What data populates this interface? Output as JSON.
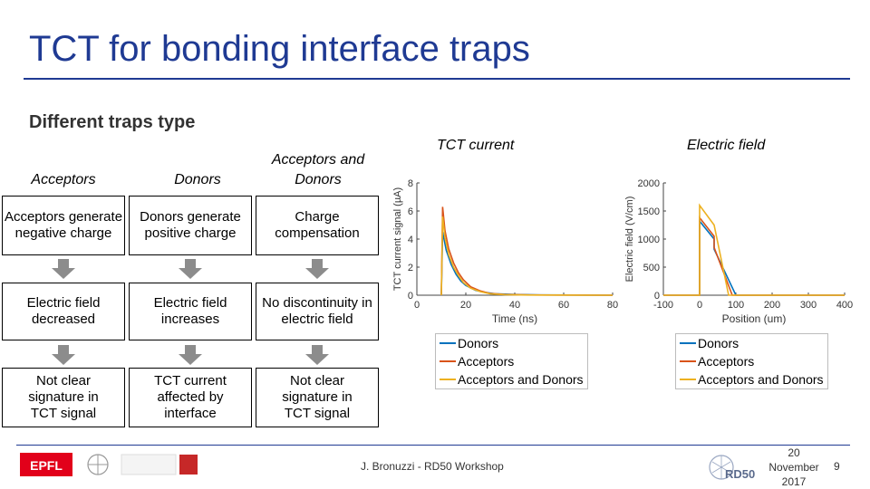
{
  "slide": {
    "title": "TCT for bonding interface traps",
    "subtitle": "Different traps type",
    "page_number": "9"
  },
  "columns": [
    {
      "header": "Acceptors",
      "effect": "Acceptors generate negative charge",
      "field": "Electric field decreased",
      "signal": "Not clear signature in TCT signal"
    },
    {
      "header": "Donors",
      "effect": "Donors generate positive charge",
      "field": "Electric field increases",
      "signal": "TCT current affected by interface"
    },
    {
      "header": "Acceptors and Donors",
      "effect": "Charge compensation",
      "field": "No discontinuity in electric field",
      "signal": "Not clear signature in TCT signal"
    }
  ],
  "footer": {
    "author": "J. Bronuzzi - RD50 Workshop",
    "date_line1": "20",
    "date_line2": "November",
    "date_line3": "2017",
    "logo_left_text": "EPFL",
    "logo_right_text": "RD50"
  },
  "colors": {
    "donors": "#0072bd",
    "acceptors": "#d95319",
    "both": "#edb120",
    "accent": "#1f3a93"
  },
  "chart_data": [
    {
      "type": "line",
      "title": "TCT current",
      "xlabel": "Time (ns)",
      "ylabel": "TCT current signal (µA)",
      "xlim": [
        0,
        80
      ],
      "ylim": [
        0,
        8
      ],
      "xticks": [
        "0",
        "20",
        "40",
        "60",
        "80"
      ],
      "yticks": [
        "0",
        "2",
        "4",
        "6",
        "8"
      ],
      "grid": false,
      "legend_position": "below",
      "series": [
        {
          "name": "Donors",
          "x": [
            10,
            10.5,
            12,
            14,
            16,
            18,
            20,
            24,
            28,
            32,
            40,
            50,
            80
          ],
          "y": [
            0,
            4.5,
            3.2,
            2.2,
            1.5,
            1.0,
            0.7,
            0.35,
            0.2,
            0.1,
            0.05,
            0.02,
            0
          ]
        },
        {
          "name": "Acceptors",
          "x": [
            10,
            10.5,
            11.5,
            13,
            15,
            17,
            19,
            22,
            26,
            30,
            36,
            46,
            80
          ],
          "y": [
            0,
            6.3,
            4.6,
            3.3,
            2.3,
            1.6,
            1.1,
            0.6,
            0.3,
            0.12,
            0.05,
            0.02,
            0
          ]
        },
        {
          "name": "Acceptors and Donors",
          "x": [
            10,
            10.5,
            11.5,
            13,
            15,
            17,
            19,
            22,
            26,
            30,
            36,
            46,
            80
          ],
          "y": [
            0,
            5.6,
            4.1,
            2.9,
            2.0,
            1.4,
            0.9,
            0.5,
            0.25,
            0.1,
            0.04,
            0.01,
            0
          ]
        }
      ]
    },
    {
      "type": "line",
      "title": "Electric field",
      "xlabel": "Position (um)",
      "ylabel": "Electric field (V/cm)",
      "xlim": [
        -100,
        400
      ],
      "ylim": [
        0,
        2000
      ],
      "xticks": [
        "-100",
        "0",
        "100",
        "200",
        "300",
        "400"
      ],
      "yticks": [
        "0",
        "500",
        "1000",
        "1500",
        "2000"
      ],
      "grid": false,
      "legend_position": "below",
      "series": [
        {
          "name": "Donors",
          "x": [
            -100,
            0,
            0,
            40,
            40,
            100,
            400
          ],
          "y": [
            0,
            0,
            1320,
            1000,
            820,
            0,
            0
          ]
        },
        {
          "name": "Acceptors",
          "x": [
            -100,
            0,
            0,
            40,
            40,
            90,
            400
          ],
          "y": [
            0,
            0,
            1380,
            1050,
            850,
            0,
            0
          ]
        },
        {
          "name": "Acceptors and Donors",
          "x": [
            -100,
            0,
            0,
            40,
            80,
            400
          ],
          "y": [
            0,
            0,
            1600,
            1250,
            0,
            0
          ]
        }
      ]
    }
  ]
}
